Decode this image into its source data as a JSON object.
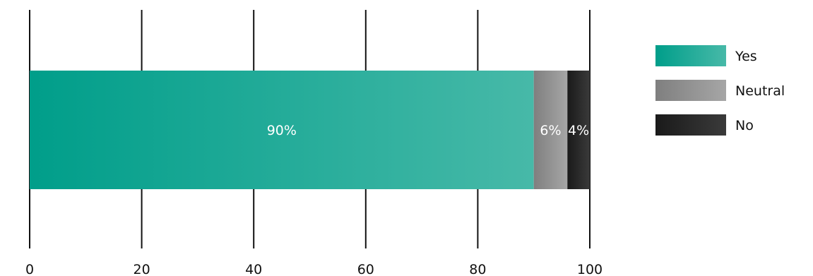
{
  "chart_data": {
    "type": "bar",
    "orientation": "horizontal",
    "stacked": true,
    "categories": [
      ""
    ],
    "series": [
      {
        "name": "Yes",
        "values": [
          90
        ],
        "label": "90%",
        "color_start": "#009e8a",
        "color_end": "#47b9a8"
      },
      {
        "name": "Neutral",
        "values": [
          6
        ],
        "label": "6%",
        "color_start": "#7f7f7f",
        "color_end": "#a6a6a6"
      },
      {
        "name": "No",
        "values": [
          4
        ],
        "label": "4%",
        "color_start": "#1a1a1a",
        "color_end": "#3a3a3a"
      }
    ],
    "xlim": [
      0,
      100
    ],
    "x_ticks": [
      0,
      20,
      40,
      60,
      80,
      100
    ],
    "x_tick_labels": [
      "0",
      "20",
      "40",
      "60",
      "80",
      "100"
    ],
    "grid": true,
    "legend_position": "right",
    "title": "",
    "xlabel": "",
    "ylabel": ""
  }
}
